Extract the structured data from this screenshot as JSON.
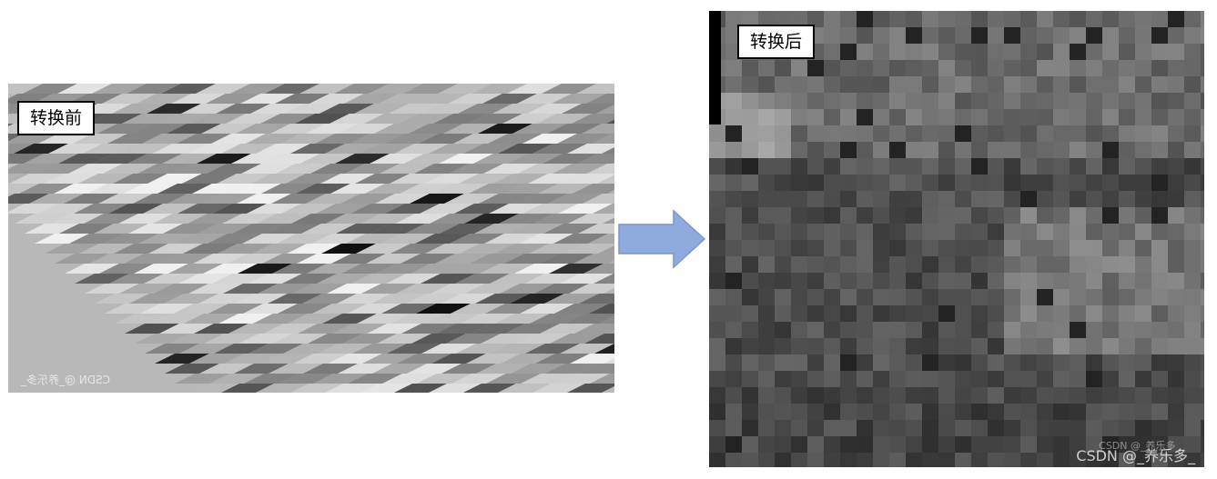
{
  "before": {
    "label": "转换前",
    "watermark": "CSDN @_养乐多_"
  },
  "after": {
    "label": "转换后",
    "watermark": "CSDN @_养乐多_"
  },
  "arrow": {
    "fill": "#8faadc",
    "stroke": "#7f96c8"
  }
}
